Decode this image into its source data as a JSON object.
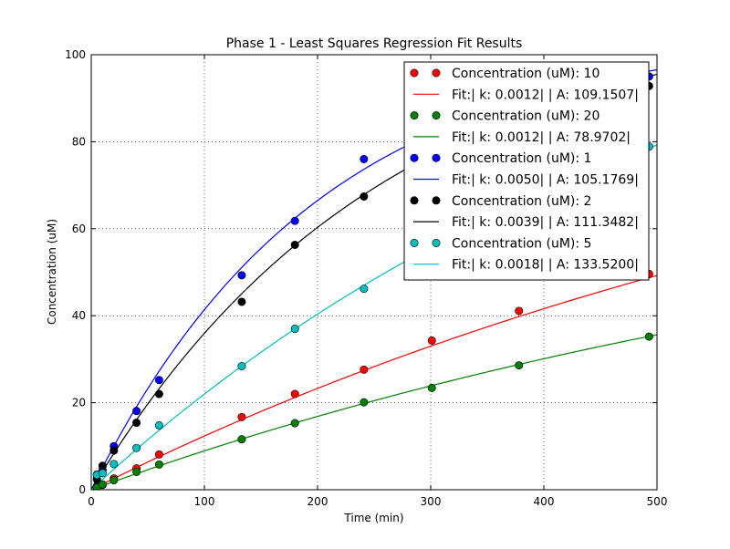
{
  "chart_data": {
    "type": "scatter",
    "title": "Phase 1 - Least Squares Regression Fit Results",
    "xlabel": "Time (min)",
    "ylabel": "Concentration (uM)",
    "xlim": [
      0,
      500
    ],
    "ylim": [
      0,
      100
    ],
    "xticks": [
      0,
      100,
      200,
      300,
      400,
      500
    ],
    "yticks": [
      0,
      20,
      40,
      60,
      80,
      100
    ],
    "grid": true,
    "legend_position": "top-right",
    "series": [
      {
        "name": "Concentration (uM): 10",
        "kind": "points",
        "color": "#ff0000",
        "x": [
          5,
          10,
          20,
          40,
          60,
          133,
          180,
          241,
          301,
          378,
          493
        ],
        "y": [
          0.6,
          1.1,
          2.6,
          4.9,
          8.1,
          16.7,
          22.0,
          27.6,
          34.3,
          41.1,
          49.6
        ]
      },
      {
        "name": "Fit:| k: 0.0012| | A: 109.1507|",
        "kind": "fit",
        "color": "#ff0000",
        "k": 0.0012,
        "A": 109.1507
      },
      {
        "name": "Concentration (uM): 20",
        "kind": "points",
        "color": "#008000",
        "x": [
          5,
          10,
          20,
          40,
          60,
          133,
          180,
          241,
          301,
          378,
          493
        ],
        "y": [
          0.5,
          1.2,
          2.2,
          4.1,
          5.8,
          11.6,
          15.3,
          20.1,
          23.4,
          28.6,
          35.2
        ]
      },
      {
        "name": "Fit:| k: 0.0012| | A: 78.9702|",
        "kind": "fit",
        "color": "#008000",
        "k": 0.0012,
        "A": 78.9702
      },
      {
        "name": "Concentration (uM): 1",
        "kind": "points",
        "color": "#0000ff",
        "x": [
          5,
          10,
          20,
          40,
          60,
          133,
          180,
          241,
          301,
          378,
          493
        ],
        "y": [
          3.5,
          4.5,
          10.0,
          18.1,
          25.2,
          49.3,
          61.8,
          76.0,
          83.5,
          89.0,
          95.0
        ]
      },
      {
        "name": "Fit:| k: 0.0050| | A: 105.1769|",
        "kind": "fit",
        "color": "#0000ff",
        "k": 0.005,
        "A": 105.1769
      },
      {
        "name": "Concentration (uM): 2",
        "kind": "points",
        "color": "#000000",
        "x": [
          5,
          10,
          20,
          40,
          60,
          133,
          180,
          241,
          301,
          378,
          493
        ],
        "y": [
          2.4,
          5.5,
          9.0,
          15.4,
          22.0,
          43.2,
          56.3,
          67.4,
          75.0,
          85.0,
          92.8
        ]
      },
      {
        "name": "Fit:| k: 0.0039| | A: 111.3482|",
        "kind": "fit",
        "color": "#000000",
        "k": 0.0039,
        "A": 111.3482
      },
      {
        "name": "Concentration (uM): 5",
        "kind": "points",
        "color": "#00bfbf",
        "x": [
          5,
          10,
          20,
          40,
          60,
          133,
          180,
          241,
          301,
          378,
          493
        ],
        "y": [
          3.4,
          3.8,
          5.9,
          9.6,
          14.8,
          28.4,
          37.0,
          46.2,
          55.0,
          66.0,
          78.9
        ]
      },
      {
        "name": "Fit:| k: 0.0018| | A: 133.5200|",
        "kind": "fit",
        "color": "#00bfbf",
        "k": 0.0018,
        "A": 133.52
      }
    ]
  }
}
